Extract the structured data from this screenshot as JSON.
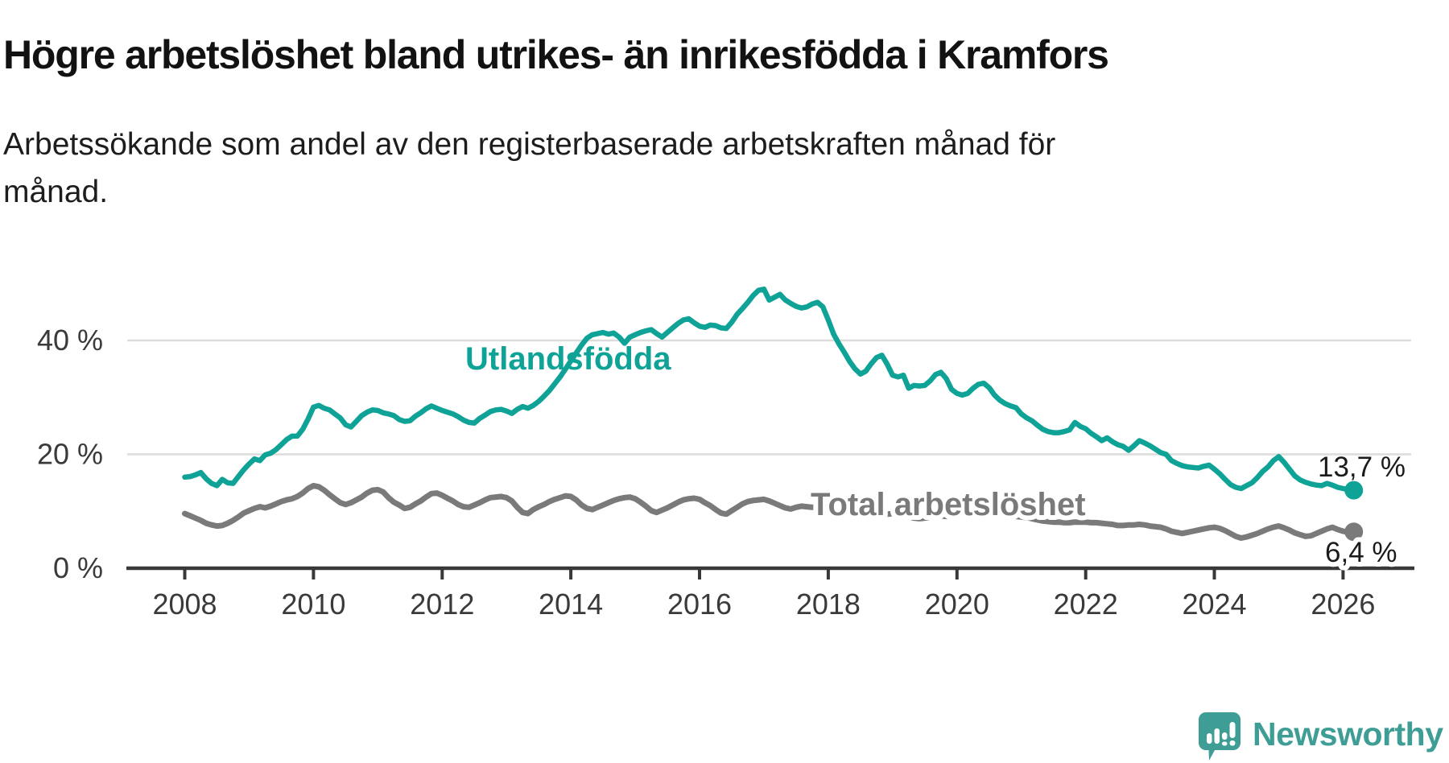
{
  "header": {
    "title": "Högre arbetslöshet bland utrikes- än inrikesfödda i Kramfors",
    "subtitle_line1": "Arbetssökande som andel av den registerbaserade arbetskraften månad för",
    "subtitle_line2": "månad."
  },
  "chart_data": {
    "type": "line",
    "title": "Högre arbetslöshet bland utrikes- än inrikesfödda i Kramfors",
    "subtitle": "Arbetssökande som andel av den registerbaserade arbetskraften månad för månad.",
    "x_start_year": 2008,
    "x_step_months": 1,
    "xlim": [
      2007.1,
      2027.1
    ],
    "ylim": [
      0,
      52
    ],
    "grid": "horizontal-y",
    "legend_position": "inline-labels",
    "x_axis_ticks": [
      "2008",
      "2010",
      "2012",
      "2014",
      "2016",
      "2018",
      "2020",
      "2022",
      "2024",
      "2026"
    ],
    "y_axis_ticks": [
      "0 %",
      "20 %",
      "40 %"
    ],
    "y_tick_values": [
      0,
      20,
      40
    ],
    "y_gridline_values": [
      20,
      40
    ],
    "colors": {
      "foreign_born": "#0fa296",
      "total": "#7a7a7a",
      "grid": "#dcdcdc",
      "axis": "#383838",
      "annotation": "#1b1b1b"
    },
    "series": [
      {
        "name": "Utlandsfödda",
        "color": "#0fa296",
        "end_label": "13,7 %",
        "end_value": 13.7,
        "values": [
          16.0,
          16.1,
          16.4,
          16.8,
          15.7,
          14.9,
          14.5,
          15.6,
          15.0,
          14.9,
          16.1,
          17.3,
          18.3,
          19.2,
          18.9,
          19.9,
          20.2,
          20.8,
          21.7,
          22.6,
          23.2,
          23.2,
          24.4,
          26.2,
          28.3,
          28.6,
          28.1,
          27.8,
          27.1,
          26.4,
          25.2,
          24.8,
          25.8,
          26.8,
          27.4,
          27.8,
          27.7,
          27.3,
          27.1,
          26.8,
          26.1,
          25.8,
          25.9,
          26.7,
          27.3,
          28.0,
          28.5,
          28.1,
          27.7,
          27.4,
          27.1,
          26.6,
          26.0,
          25.6,
          25.5,
          26.3,
          26.9,
          27.5,
          27.8,
          27.9,
          27.6,
          27.2,
          27.9,
          28.4,
          28.1,
          28.6,
          29.3,
          30.2,
          31.2,
          32.4,
          33.6,
          35.0,
          36.4,
          37.8,
          39.2,
          40.4,
          41.0,
          41.2,
          41.4,
          41.1,
          41.3,
          40.6,
          39.5,
          40.6,
          41.0,
          41.4,
          41.7,
          41.9,
          41.2,
          40.6,
          41.4,
          42.2,
          43.0,
          43.6,
          43.8,
          43.1,
          42.5,
          42.3,
          42.7,
          42.6,
          42.2,
          42.1,
          43.2,
          44.6,
          45.6,
          46.7,
          47.9,
          48.8,
          49.0,
          47.1,
          47.6,
          48.1,
          47.1,
          46.5,
          46.0,
          45.7,
          45.9,
          46.4,
          46.7,
          45.9,
          43.6,
          41.1,
          39.4,
          37.9,
          36.3,
          35.0,
          34.1,
          34.6,
          35.9,
          37.0,
          37.4,
          35.8,
          33.9,
          33.6,
          33.9,
          31.6,
          32.1,
          32.0,
          32.1,
          32.9,
          34.0,
          34.4,
          33.3,
          31.4,
          30.7,
          30.4,
          30.7,
          31.6,
          32.3,
          32.5,
          31.7,
          30.4,
          29.5,
          28.9,
          28.5,
          28.2,
          27.1,
          26.4,
          25.9,
          25.1,
          24.4,
          24.0,
          23.8,
          23.8,
          24.0,
          24.3,
          25.6,
          24.9,
          24.5,
          23.7,
          23.1,
          22.4,
          22.9,
          22.2,
          21.7,
          21.4,
          20.7,
          21.5,
          22.4,
          22.0,
          21.5,
          20.9,
          20.3,
          20.0,
          18.9,
          18.4,
          18.0,
          17.8,
          17.7,
          17.6,
          17.9,
          18.1,
          17.4,
          16.6,
          15.6,
          14.7,
          14.2,
          14.0,
          14.5,
          15.0,
          15.9,
          17.0,
          17.8,
          18.9,
          19.6,
          18.6,
          17.4,
          16.2,
          15.5,
          15.1,
          14.8,
          14.6,
          14.5,
          14.9,
          14.6,
          14.2,
          14.0,
          13.8,
          13.7
        ]
      },
      {
        "name": "Total arbetslöshet",
        "color": "#7a7a7a",
        "end_label": "6,4 %",
        "end_value": 6.4,
        "values": [
          9.6,
          9.2,
          8.8,
          8.4,
          7.9,
          7.6,
          7.4,
          7.5,
          7.9,
          8.4,
          9.0,
          9.7,
          10.1,
          10.5,
          10.8,
          10.6,
          10.9,
          11.3,
          11.7,
          12.0,
          12.2,
          12.6,
          13.2,
          14.0,
          14.5,
          14.3,
          13.7,
          12.9,
          12.2,
          11.5,
          11.2,
          11.5,
          12.0,
          12.5,
          13.2,
          13.7,
          13.8,
          13.4,
          12.4,
          11.6,
          11.1,
          10.5,
          10.7,
          11.3,
          11.8,
          12.5,
          13.1,
          13.2,
          12.8,
          12.3,
          11.8,
          11.2,
          10.8,
          10.7,
          11.1,
          11.5,
          12.0,
          12.4,
          12.5,
          12.6,
          12.4,
          11.8,
          10.7,
          9.8,
          9.6,
          10.3,
          10.8,
          11.2,
          11.7,
          12.1,
          12.4,
          12.7,
          12.6,
          12.0,
          11.1,
          10.5,
          10.3,
          10.7,
          11.1,
          11.5,
          11.9,
          12.2,
          12.4,
          12.5,
          12.2,
          11.6,
          10.9,
          10.1,
          9.8,
          10.2,
          10.6,
          11.1,
          11.6,
          12.0,
          12.2,
          12.3,
          12.1,
          11.5,
          11.0,
          10.3,
          9.7,
          9.5,
          10.1,
          10.7,
          11.3,
          11.7,
          11.9,
          12.0,
          12.1,
          11.8,
          11.4,
          11.0,
          10.6,
          10.4,
          10.7,
          10.9,
          10.8,
          10.7,
          10.8,
          10.7,
          10.5,
          10.2,
          9.9,
          9.6,
          9.4,
          9.2,
          9.3,
          9.5,
          9.6,
          9.6,
          9.5,
          9.5,
          9.6,
          9.5,
          9.3,
          9.0,
          8.8,
          8.7,
          8.8,
          9.0,
          9.1,
          9.2,
          9.1,
          9.2,
          9.4,
          9.5,
          9.7,
          10.1,
          10.2,
          10.1,
          10.0,
          9.8,
          9.6,
          9.4,
          9.2,
          9.1,
          9.0,
          8.9,
          8.7,
          8.5,
          8.3,
          8.2,
          8.1,
          8.1,
          8.0,
          8.0,
          8.1,
          8.1,
          8.1,
          8.0,
          8.0,
          7.9,
          7.8,
          7.7,
          7.5,
          7.5,
          7.6,
          7.6,
          7.7,
          7.6,
          7.4,
          7.3,
          7.2,
          6.9,
          6.5,
          6.3,
          6.1,
          6.3,
          6.5,
          6.7,
          6.9,
          7.1,
          7.2,
          7.0,
          6.6,
          6.1,
          5.6,
          5.3,
          5.5,
          5.8,
          6.1,
          6.5,
          6.9,
          7.2,
          7.4,
          7.1,
          6.7,
          6.2,
          5.9,
          5.6,
          5.7,
          6.1,
          6.5,
          6.9,
          7.2,
          6.8,
          6.5,
          6.3,
          6.4
        ]
      }
    ]
  },
  "annotations": {
    "series1_label": "Utlandsfödda",
    "series2_label": "Total arbetslöshet",
    "series1_end_value": "13,7 %",
    "series2_end_value": "6,4 %"
  },
  "logo": {
    "text": "Newsworthy",
    "color": "#3e9d95",
    "icon": "speech-bubble-bar-chart-icon"
  }
}
